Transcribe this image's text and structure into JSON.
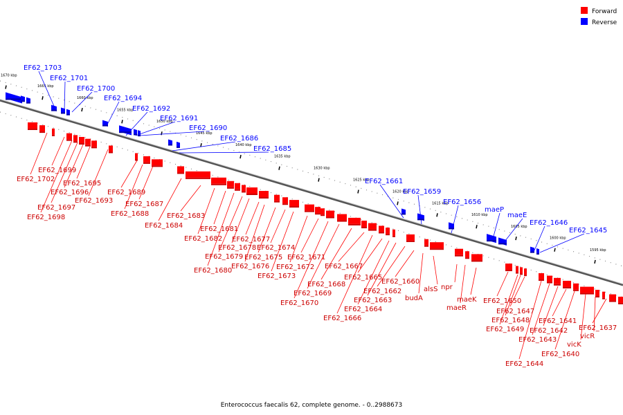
{
  "title": "Enterococcus faecalis 62, complete genome. - 0..2988673",
  "colors": {
    "forward": "#ff0000",
    "forward_dark": "#cc0000",
    "reverse": "#0000ff",
    "reverse_dark": "#0000aa",
    "backbone": "#888888"
  },
  "legend": [
    {
      "label": "Forward",
      "color": "#ff0000"
    },
    {
      "label": "Reverse",
      "color": "#0000ff"
    }
  ],
  "ticks": [
    "1670 kbp",
    "1665 kbp",
    "1660 kbp",
    "1655 kbp",
    "1650 kbp",
    "1645 kbp",
    "1640 kbp",
    "1635 kbp",
    "1630 kbp",
    "1625 kbp",
    "1620 kbp",
    "1615 kbp",
    "1610 kbp",
    "1605 kbp",
    "1600 kbp",
    "1595 kbp"
  ],
  "reverse_genes": [
    "EF62_1703",
    "EF62_1701",
    "EF62_1700",
    "EF62_1694",
    "EF62_1692",
    "EF62_1691",
    "EF62_1690",
    "EF62_1686",
    "EF62_1685",
    "EF62_1661",
    "EF62_1659",
    "EF62_1656",
    "maeP",
    "maeE",
    "EF62_1646",
    "EF62_1645"
  ],
  "forward_genes": [
    "EF62_1702",
    "EF62_1699",
    "EF62_1698",
    "EF62_1697",
    "EF62_1696",
    "EF62_1695",
    "EF62_1693",
    "EF62_1689",
    "EF62_1688",
    "EF62_1687",
    "EF62_1684",
    "EF62_1683",
    "EF62_1682",
    "EF62_1681",
    "EF62_1680",
    "EF62_1679",
    "EF62_1678",
    "EF62_1677",
    "EF62_1676",
    "EF62_1675",
    "EF62_1674",
    "EF62_1673",
    "EF62_1672",
    "EF62_1671",
    "EF62_1670",
    "EF62_1669",
    "EF62_1668",
    "EF62_1667",
    "EF62_1666",
    "EF62_1665",
    "EF62_1664",
    "EF62_1663",
    "EF62_1662",
    "EF62_1660",
    "budA",
    "alsS",
    "npr",
    "maeR",
    "maeK",
    "EF62_1650",
    "EF62_1649",
    "EF62_1648",
    "EF62_1647",
    "EF62_1644",
    "EF62_1643",
    "EF62_1642",
    "EF62_1641",
    "EF62_1640",
    "vicK",
    "vicR",
    "EF62_1637"
  ]
}
